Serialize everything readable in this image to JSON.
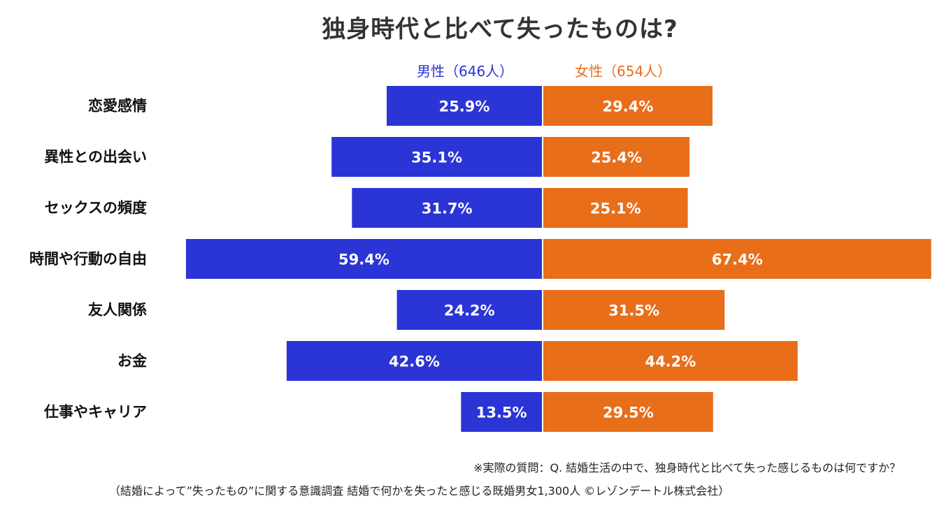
{
  "chart_data": {
    "type": "bar",
    "orientation": "horizontal-diverging",
    "title": "独身時代と比べて失ったものは?",
    "categories": [
      "恋愛感情",
      "異性との出会い",
      "セックスの頻度",
      "時間や行動の自由",
      "友人関係",
      "お金",
      "仕事やキャリア"
    ],
    "series": [
      {
        "name": "男性（646人）",
        "color": "#2b34d4",
        "side": "left",
        "values": [
          25.9,
          35.1,
          31.7,
          59.4,
          24.2,
          42.6,
          13.5
        ],
        "labels": [
          "25.9%",
          "35.1%",
          "31.7%",
          "59.4%",
          "24.2%",
          "42.6%",
          "13.5%"
        ]
      },
      {
        "name": "女性（654人）",
        "color": "#e86e1a",
        "side": "right",
        "values": [
          29.4,
          25.4,
          25.1,
          67.4,
          31.5,
          44.2,
          29.5
        ],
        "labels": [
          "29.4%",
          "25.4%",
          "25.1%",
          "67.4%",
          "31.5%",
          "44.2%",
          "29.5%"
        ]
      }
    ],
    "unit": "%",
    "grid": false,
    "legend": "top-center"
  },
  "notes": {
    "question": "※実際の質問：Q. 結婚生活の中で、独身時代と比べて失った感じるものは何ですか？",
    "source": "（結婚によって”失ったもの”に関する意識調査  結婚で何かを失ったと感じる既婚男女1,300人 ©レゾンデートル株式会社）"
  }
}
